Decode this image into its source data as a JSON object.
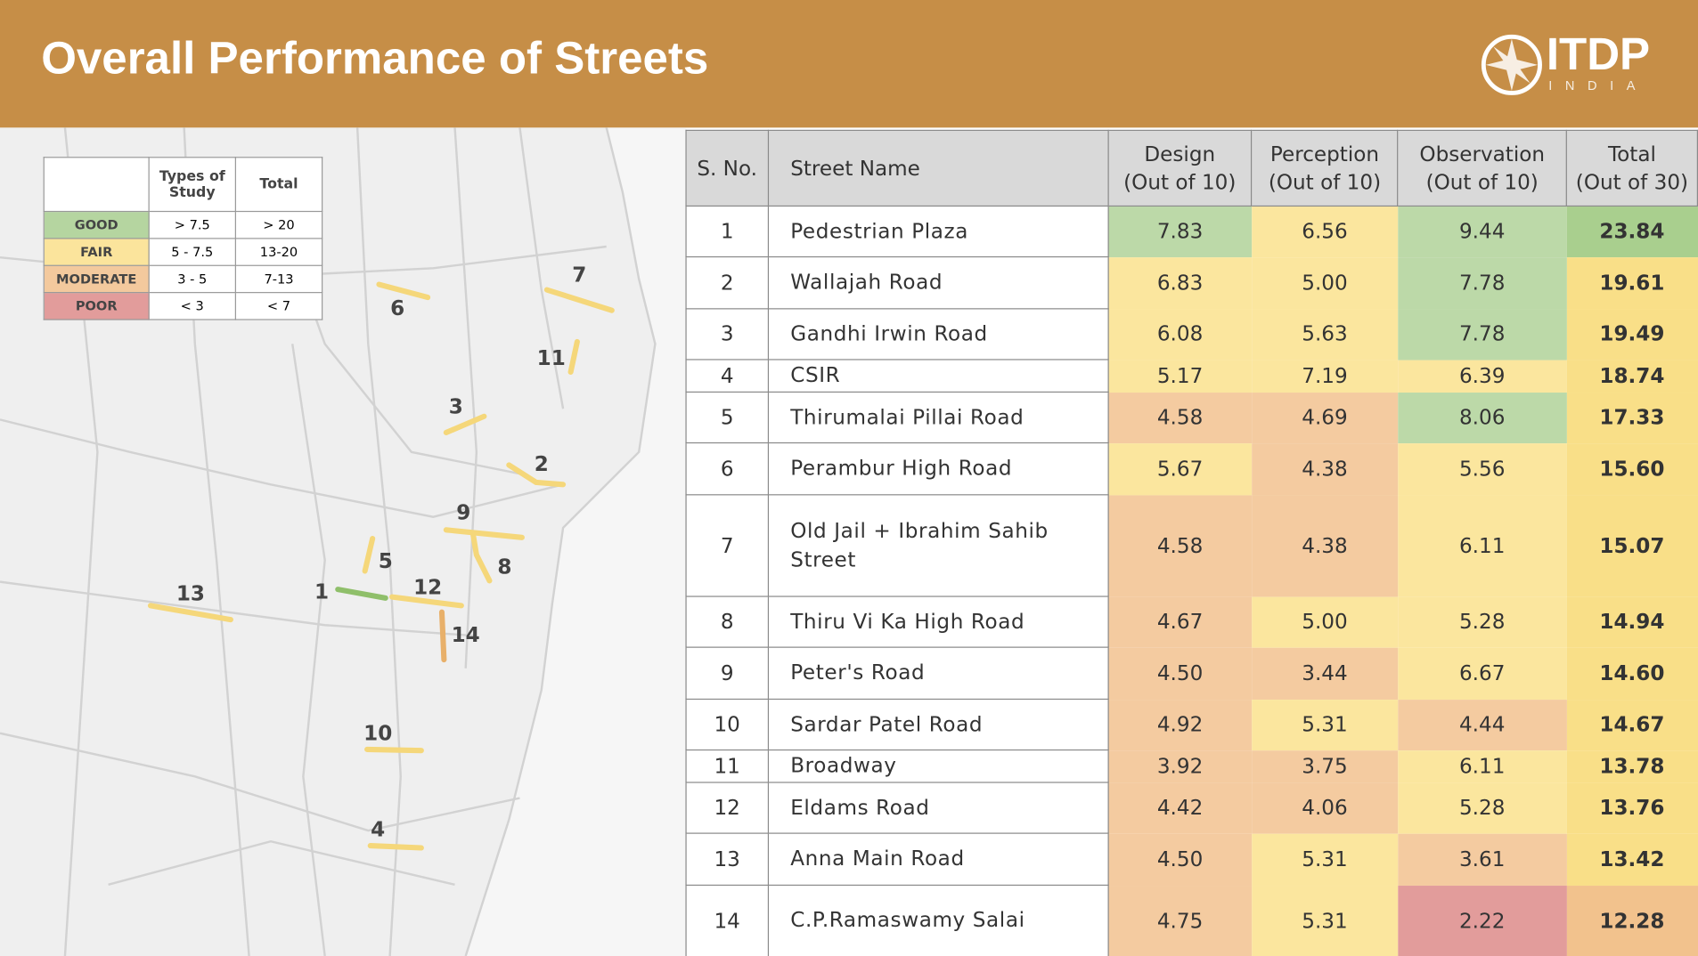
{
  "header": {
    "title": "Overall Performance of Streets",
    "logo": "ITDP",
    "logo_sub": "INDIA"
  },
  "legend": {
    "header": [
      "Types of Study",
      "Total"
    ],
    "rows": [
      {
        "label": "GOOD",
        "color": "#b5d5a0",
        "study": "> 7.5",
        "total": "> 20"
      },
      {
        "label": "FAIR",
        "color": "#fbe49c",
        "study": "5 - 7.5",
        "total": "13-20"
      },
      {
        "label": "MODERATE",
        "color": "#f3c99d",
        "study": "3 - 5",
        "total": "7-13"
      },
      {
        "label": "POOR",
        "color": "#e29c9b",
        "study": "< 3",
        "total": "< 7"
      }
    ]
  },
  "map": {
    "labels": [
      "1",
      "2",
      "3",
      "4",
      "5",
      "6",
      "7",
      "8",
      "9",
      "10",
      "11",
      "12",
      "13",
      "14"
    ]
  },
  "table": {
    "header": [
      "S. No.",
      "Street Name",
      "Design\n(Out of 10)",
      "Perception\n(Out of 10)",
      "Observation\n(Out of 10)",
      "Total\n(Out of 30)"
    ],
    "rows": [
      {
        "cells": [
          "1",
          "Pedestrian Plaza",
          "7.83",
          "6.56",
          "9.44",
          "23.84"
        ],
        "colors": [
          "#bcd9a8",
          "#fbe69e",
          "#bcd9a8",
          "#a9cf8e"
        ]
      },
      {
        "cells": [
          "2",
          "Wallajah Road",
          "6.83",
          "5.00",
          "7.78",
          "19.61"
        ],
        "colors": [
          "#fbe69e",
          "#fbe69e",
          "#bcd9a8",
          "#f9df88"
        ]
      },
      {
        "cells": [
          "3",
          "Gandhi Irwin Road",
          "6.08",
          "5.63",
          "7.78",
          "19.49"
        ],
        "colors": [
          "#fbe69e",
          "#fbe69e",
          "#bcd9a8",
          "#f9df88"
        ]
      },
      {
        "cells": [
          "4",
          "CSIR",
          "5.17",
          "7.19",
          "6.39",
          "18.74"
        ],
        "colors": [
          "#fbe69e",
          "#fbe69e",
          "#fbe69e",
          "#f9df88"
        ]
      },
      {
        "cells": [
          "5",
          "Thirumalai Pillai Road",
          "4.58",
          "4.69",
          "8.06",
          "17.33"
        ],
        "colors": [
          "#f4cba0",
          "#f4cba0",
          "#bcd9a8",
          "#f9df88"
        ]
      },
      {
        "cells": [
          "6",
          "Perambur High Road",
          "5.67",
          "4.38",
          "5.56",
          "15.60"
        ],
        "colors": [
          "#fbe69e",
          "#f4cba0",
          "#fbe69e",
          "#f9df88"
        ]
      },
      {
        "cells": [
          "7",
          "Old Jail + Ibrahim Sahib Street",
          "4.58",
          "4.38",
          "6.11",
          "15.07"
        ],
        "colors": [
          "#f4cba0",
          "#f4cba0",
          "#fbe69e",
          "#f9df88"
        ]
      },
      {
        "cells": [
          "8",
          "Thiru Vi Ka High Road",
          "4.67",
          "5.00",
          "5.28",
          "14.94"
        ],
        "colors": [
          "#f4cba0",
          "#fbe69e",
          "#fbe69e",
          "#f9df88"
        ]
      },
      {
        "cells": [
          "9",
          "Peter's Road",
          "4.50",
          "3.44",
          "6.67",
          "14.60"
        ],
        "colors": [
          "#f4cba0",
          "#f4cba0",
          "#fbe69e",
          "#f9df88"
        ]
      },
      {
        "cells": [
          "10",
          "Sardar Patel Road",
          "4.92",
          "5.31",
          "4.44",
          "14.67"
        ],
        "colors": [
          "#f4cba0",
          "#fbe69e",
          "#f4cba0",
          "#f9df88"
        ]
      },
      {
        "cells": [
          "11",
          "Broadway",
          "3.92",
          "3.75",
          "6.11",
          "13.78"
        ],
        "colors": [
          "#f4cba0",
          "#f4cba0",
          "#fbe69e",
          "#f9df88"
        ]
      },
      {
        "cells": [
          "12",
          "Eldams Road",
          "4.42",
          "4.06",
          "5.28",
          "13.76"
        ],
        "colors": [
          "#f4cba0",
          "#f4cba0",
          "#fbe69e",
          "#f9df88"
        ]
      },
      {
        "cells": [
          "13",
          "Anna Main Road",
          "4.50",
          "5.31",
          "3.61",
          "13.42"
        ],
        "colors": [
          "#f4cba0",
          "#fbe69e",
          "#f4cba0",
          "#f9df88"
        ]
      },
      {
        "cells": [
          "14",
          "C.P.Ramaswamy Salai",
          "4.75",
          "5.31",
          "2.22",
          "12.28"
        ],
        "colors": [
          "#f4cba0",
          "#fbe69e",
          "#e29c9b",
          "#f2c28d"
        ]
      }
    ]
  }
}
